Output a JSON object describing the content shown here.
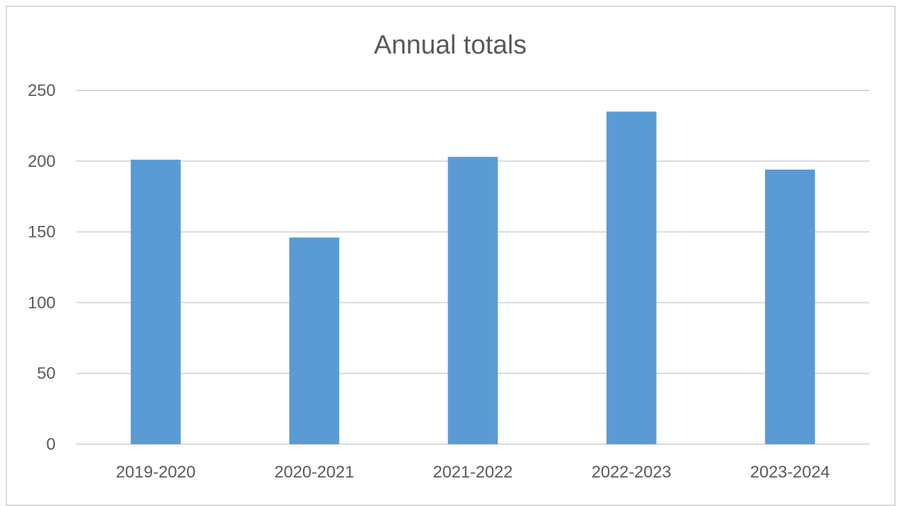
{
  "chart_data": {
    "type": "bar",
    "title": "Annual totals",
    "xlabel": "",
    "ylabel": "",
    "categories": [
      "2019-2020",
      "2020-2021",
      "2021-2022",
      "2022-2023",
      "2023-2024"
    ],
    "values": [
      201,
      146,
      203,
      235,
      194
    ],
    "ylim": [
      0,
      250
    ],
    "yticks": [
      0,
      50,
      100,
      150,
      200,
      250
    ],
    "grid": true,
    "legend": "none",
    "colors": {
      "bar": "#5b9bd5",
      "grid": "#d9d9d9",
      "axis": "#d9d9d9",
      "text": "#595959"
    }
  }
}
